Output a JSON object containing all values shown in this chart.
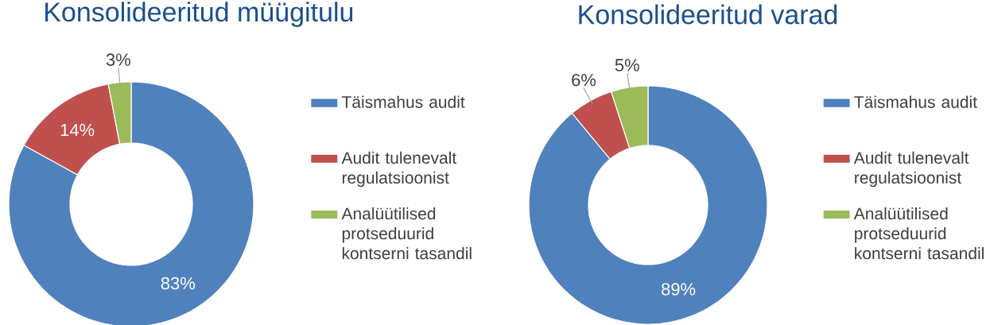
{
  "chart_data": [
    {
      "type": "donut",
      "title": "Konsolideeritud müügitulu",
      "categories": [
        "Täismahus audit",
        "Audit tulenevalt regulatsioonist",
        "Analüütilised protseduurid kontserni tasandil"
      ],
      "values": [
        83,
        14,
        3
      ],
      "colors": [
        "#4f81bd",
        "#c0504d",
        "#9bbb59"
      ],
      "value_labels": [
        "83%",
        "14%",
        "3%"
      ],
      "legend": "right"
    },
    {
      "type": "donut",
      "title": "Konsolideeritud varad",
      "categories": [
        "Täismahus audit",
        "Audit tulenevalt regulatsioonist",
        "Analüütilised protseduurid kontserni tasandil"
      ],
      "values": [
        89,
        6,
        5
      ],
      "colors": [
        "#4f81bd",
        "#c0504d",
        "#9bbb59"
      ],
      "value_labels": [
        "89%",
        "6%",
        "5%"
      ],
      "legend": "right"
    }
  ]
}
